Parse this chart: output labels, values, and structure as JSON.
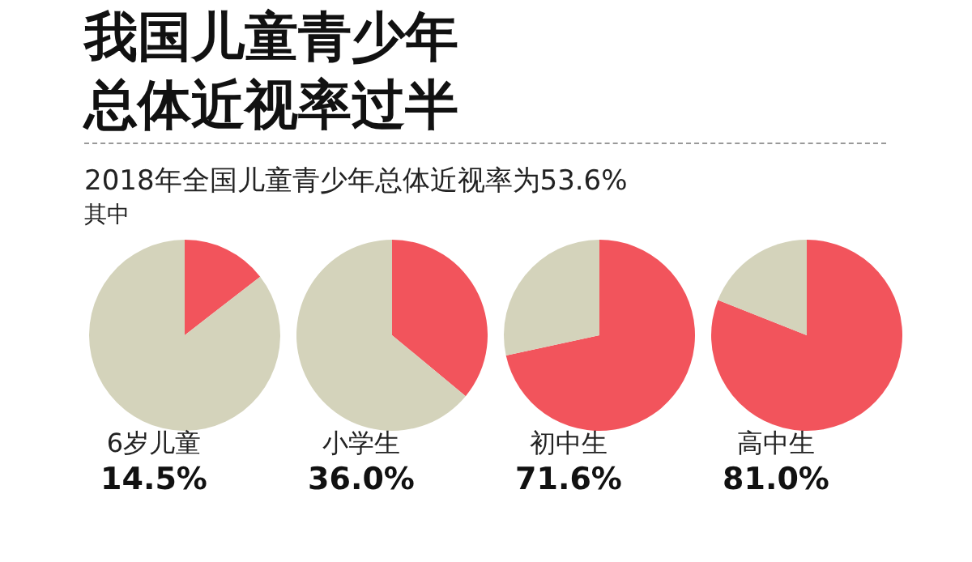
{
  "chart_data": [
    {
      "type": "other",
      "title": "我国儿童青少年总体近视率过半",
      "subtitle": "2018年全国儿童青少年总体近视率为53.6%",
      "annotations": [
        "其中"
      ]
    },
    {
      "type": "pie",
      "title": "6岁儿童",
      "subtitle": "14.5%",
      "categories": [
        null,
        null
      ],
      "values": [
        14.5,
        85.5
      ],
      "colors": [
        "#f2545c",
        "#d4d3bb"
      ]
    },
    {
      "type": "pie",
      "title": "小学生",
      "subtitle": "36.0%",
      "categories": [
        null,
        null
      ],
      "values": [
        36.0,
        64.0
      ],
      "colors": [
        "#f2545c",
        "#d4d3bb"
      ]
    },
    {
      "type": "pie",
      "title": "初中生",
      "subtitle": "71.6%",
      "categories": [
        null,
        null
      ],
      "values": [
        71.6,
        28.4
      ],
      "colors": [
        "#f2545c",
        "#d4d3bb"
      ]
    },
    {
      "type": "pie",
      "title": "高中生",
      "subtitle": "81.0%",
      "categories": [
        null,
        null
      ],
      "values": [
        81.0,
        19.0
      ],
      "colors": [
        "#f2545c",
        "#d4d3bb"
      ]
    }
  ]
}
